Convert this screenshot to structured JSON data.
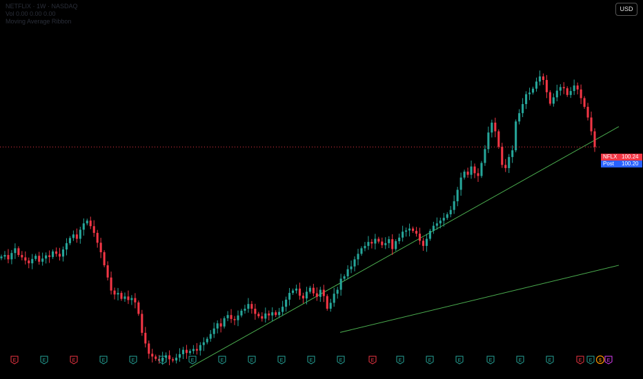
{
  "header": {
    "symbol_line": "NETFLIX · 1W · NASDAQ",
    "line2": "Vol 0.00 0.00 0.00",
    "line3": "Moving Average Ribbon"
  },
  "currency_button": "USD",
  "price_tags": {
    "symbol": "NFLX",
    "last": "100.24",
    "post_label": "Post",
    "post": "100.20"
  },
  "colors": {
    "up": "#26a69a",
    "down": "#f23645",
    "trendline": "#4caf50",
    "price_line": "#f23645",
    "post_bg": "#2962ff",
    "background": "#000000"
  },
  "chart_data": {
    "type": "candlestick",
    "ylim": [
      40,
      125
    ],
    "last_price": 100.24,
    "post_market_price": 100.2,
    "closes": [
      72.5,
      72.9,
      71.8,
      73.4,
      74.6,
      72.9,
      72.3,
      71.5,
      70.8,
      71.9,
      72.7,
      71.2,
      72.0,
      72.8,
      72.4,
      73.8,
      73.2,
      72.5,
      74.3,
      75.9,
      77.2,
      78.1,
      77.0,
      79.3,
      80.9,
      81.6,
      80.2,
      78.5,
      76.0,
      73.6,
      70.3,
      67.2,
      63.9,
      62.9,
      63.3,
      61.8,
      62.4,
      61.5,
      62.0,
      60.9,
      58.0,
      53.2,
      50.5,
      47.9,
      47.2,
      46.6,
      46.1,
      46.9,
      47.5,
      46.5,
      46.2,
      46.9,
      47.8,
      48.9,
      48.1,
      48.6,
      49.1,
      48.7,
      50.1,
      50.8,
      51.7,
      52.9,
      54.3,
      55.6,
      54.8,
      56.9,
      57.7,
      56.7,
      56.4,
      57.6,
      58.8,
      59.3,
      60.5,
      59.3,
      58.0,
      57.4,
      56.8,
      58.1,
      57.6,
      58.4,
      57.7,
      58.5,
      59.8,
      61.6,
      63.3,
      63.9,
      64.4,
      62.6,
      61.9,
      63.6,
      64.6,
      63.2,
      62.3,
      64.1,
      62.5,
      59.3,
      60.8,
      63.1,
      64.1,
      66.9,
      67.5,
      69.3,
      70.0,
      71.8,
      73.2,
      74.6,
      75.2,
      76.2,
      75.8,
      77.0,
      76.3,
      75.4,
      75.9,
      76.9,
      74.4,
      76.4,
      77.3,
      78.8,
      79.1,
      79.6,
      79.0,
      78.3,
      76.5,
      75.2,
      77.0,
      79.0,
      80.3,
      80.9,
      81.6,
      82.3,
      83.2,
      84.3,
      86.5,
      89.4,
      92.5,
      94.0,
      93.2,
      95.3,
      93.6,
      92.9,
      96.2,
      99.7,
      103.9,
      106.4,
      104.2,
      100.3,
      95.7,
      94.9,
      97.7,
      99.4,
      106.7,
      108.8,
      111.1,
      113.6,
      114.0,
      115.0,
      116.8,
      118.1,
      117.2,
      114.1,
      111.2,
      112.8,
      114.5,
      115.4,
      115.1,
      113.4,
      114.4,
      115.8,
      114.8,
      112.6,
      110.4,
      107.7,
      104.2,
      100.24
    ],
    "trendlines": [
      {
        "from": [
          275,
          44.4
        ],
        "to": [
          897,
          105.4
        ]
      },
      {
        "from": [
          493,
          53.3
        ],
        "to": [
          897,
          70.3
        ]
      }
    ],
    "earnings_markers": [
      "E",
      "E",
      "E",
      "E",
      "E",
      "E",
      "E",
      "E",
      "E",
      "E",
      "E",
      "E",
      "E",
      "E",
      "E",
      "E",
      "E",
      "E",
      "E",
      "E",
      "E",
      "$",
      "E"
    ]
  }
}
